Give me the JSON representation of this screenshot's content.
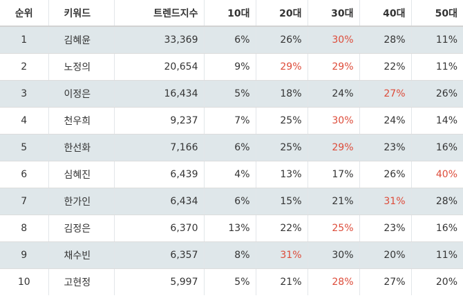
{
  "headers": {
    "rank": "순위",
    "keyword": "키워드",
    "trend": "트렌드지수",
    "age10": "10대",
    "age20": "20대",
    "age30": "30대",
    "age40": "40대",
    "age50": "50대"
  },
  "highlight_color": "#dd4b39",
  "row_shade_color": "#dfe7ea",
  "rows": [
    {
      "rank": "1",
      "keyword": "김혜윤",
      "trend": "33,369",
      "age10": "6%",
      "age20": "26%",
      "age30": "30%",
      "age40": "28%",
      "age50": "11%",
      "highlight": "age30"
    },
    {
      "rank": "2",
      "keyword": "노정의",
      "trend": "20,654",
      "age10": "9%",
      "age20": "29%",
      "age30": "29%",
      "age40": "22%",
      "age50": "11%",
      "highlight": "age20,age30"
    },
    {
      "rank": "3",
      "keyword": "이정은",
      "trend": "16,434",
      "age10": "5%",
      "age20": "18%",
      "age30": "24%",
      "age40": "27%",
      "age50": "26%",
      "highlight": "age40"
    },
    {
      "rank": "4",
      "keyword": "천우희",
      "trend": "9,237",
      "age10": "7%",
      "age20": "25%",
      "age30": "30%",
      "age40": "24%",
      "age50": "14%",
      "highlight": "age30"
    },
    {
      "rank": "5",
      "keyword": "한선화",
      "trend": "7,166",
      "age10": "6%",
      "age20": "25%",
      "age30": "29%",
      "age40": "23%",
      "age50": "16%",
      "highlight": "age30"
    },
    {
      "rank": "6",
      "keyword": "심혜진",
      "trend": "6,439",
      "age10": "4%",
      "age20": "13%",
      "age30": "17%",
      "age40": "26%",
      "age50": "40%",
      "highlight": "age50"
    },
    {
      "rank": "7",
      "keyword": "한가인",
      "trend": "6,434",
      "age10": "6%",
      "age20": "15%",
      "age30": "21%",
      "age40": "31%",
      "age50": "28%",
      "highlight": "age40"
    },
    {
      "rank": "8",
      "keyword": "김정은",
      "trend": "6,370",
      "age10": "13%",
      "age20": "22%",
      "age30": "25%",
      "age40": "23%",
      "age50": "16%",
      "highlight": "age30"
    },
    {
      "rank": "9",
      "keyword": "채수빈",
      "trend": "6,357",
      "age10": "8%",
      "age20": "31%",
      "age30": "30%",
      "age40": "20%",
      "age50": "11%",
      "highlight": "age20"
    },
    {
      "rank": "10",
      "keyword": "고현정",
      "trend": "5,997",
      "age10": "5%",
      "age20": "21%",
      "age30": "28%",
      "age40": "27%",
      "age50": "20%",
      "highlight": "age30"
    }
  ]
}
